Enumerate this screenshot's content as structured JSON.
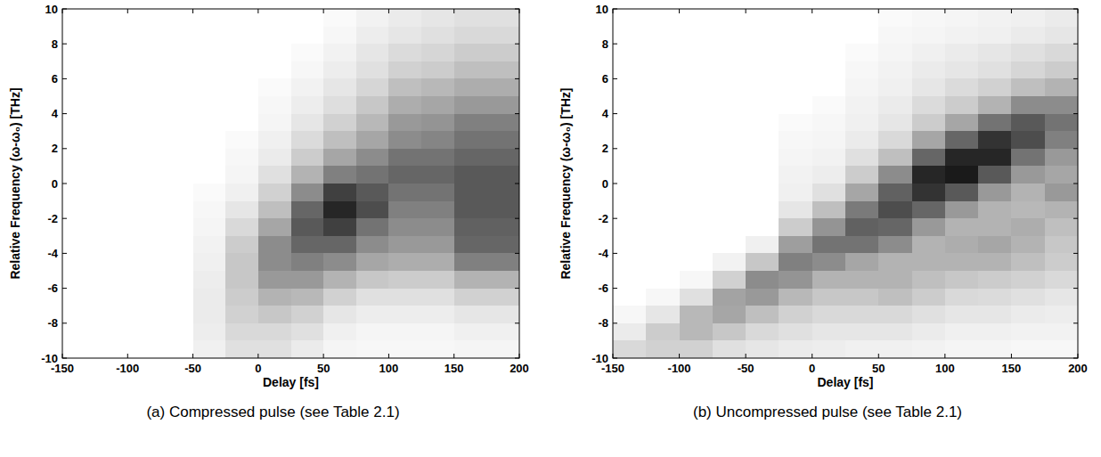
{
  "chart_data": [
    {
      "type": "heatmap",
      "title": "(a) Compressed pulse (see Table 2.1)",
      "x_label": "Delay [fs]",
      "y_label": "Relative Frequency (ω-ω₀) [THz]",
      "xlim": [
        -150,
        200
      ],
      "ylim": [
        -10,
        10
      ],
      "xticks": [
        -150,
        -100,
        -50,
        0,
        50,
        100,
        150,
        200
      ],
      "yticks": [
        -10,
        -8,
        -6,
        -4,
        -2,
        0,
        2,
        4,
        6,
        8,
        10
      ],
      "zlim": [
        0,
        1
      ],
      "color": "#000000",
      "x": [
        -137.5,
        -112.5,
        -87.5,
        -62.5,
        -37.5,
        -12.5,
        12.5,
        37.5,
        62.5,
        87.5,
        112.5,
        137.5,
        162.5,
        187.5
      ],
      "y": [
        9.5,
        8.5,
        7.5,
        6.5,
        5.5,
        4.5,
        3.5,
        2.5,
        1.5,
        0.5,
        -0.5,
        -1.5,
        -2.5,
        -3.5,
        -4.5,
        -5.5,
        -6.5,
        -7.5,
        -8.5,
        -9.5
      ],
      "cells": [
        [
          0,
          0,
          0,
          0,
          0,
          0,
          0,
          0,
          0.02,
          0.05,
          0.08,
          0.1,
          0.12,
          0.12
        ],
        [
          0,
          0,
          0,
          0,
          0,
          0,
          0,
          0,
          0.03,
          0.07,
          0.1,
          0.12,
          0.15,
          0.15
        ],
        [
          0,
          0,
          0,
          0,
          0,
          0,
          0,
          0.02,
          0.05,
          0.1,
          0.14,
          0.16,
          0.2,
          0.2
        ],
        [
          0,
          0,
          0,
          0,
          0,
          0,
          0,
          0.03,
          0.07,
          0.12,
          0.18,
          0.2,
          0.25,
          0.25
        ],
        [
          0,
          0,
          0,
          0,
          0,
          0,
          0.02,
          0.05,
          0.1,
          0.16,
          0.25,
          0.28,
          0.32,
          0.32
        ],
        [
          0,
          0,
          0,
          0,
          0,
          0,
          0.03,
          0.07,
          0.13,
          0.22,
          0.32,
          0.35,
          0.4,
          0.4
        ],
        [
          0,
          0,
          0,
          0,
          0,
          0,
          0.04,
          0.1,
          0.18,
          0.28,
          0.4,
          0.42,
          0.5,
          0.5
        ],
        [
          0,
          0,
          0,
          0,
          0,
          0.02,
          0.06,
          0.14,
          0.25,
          0.35,
          0.45,
          0.48,
          0.55,
          0.55
        ],
        [
          0,
          0,
          0,
          0,
          0,
          0.03,
          0.08,
          0.2,
          0.35,
          0.45,
          0.55,
          0.55,
          0.6,
          0.6
        ],
        [
          0,
          0,
          0,
          0,
          0,
          0.04,
          0.12,
          0.3,
          0.5,
          0.55,
          0.6,
          0.6,
          0.65,
          0.65
        ],
        [
          0,
          0,
          0,
          0,
          0.02,
          0.06,
          0.18,
          0.45,
          0.75,
          0.65,
          0.55,
          0.55,
          0.65,
          0.65
        ],
        [
          0,
          0,
          0,
          0,
          0.03,
          0.1,
          0.25,
          0.6,
          0.85,
          0.7,
          0.5,
          0.5,
          0.65,
          0.65
        ],
        [
          0,
          0,
          0,
          0,
          0.04,
          0.15,
          0.35,
          0.65,
          0.75,
          0.55,
          0.45,
          0.45,
          0.62,
          0.62
        ],
        [
          0,
          0,
          0,
          0,
          0.05,
          0.2,
          0.45,
          0.6,
          0.6,
          0.45,
          0.4,
          0.4,
          0.6,
          0.6
        ],
        [
          0,
          0,
          0,
          0,
          0.06,
          0.22,
          0.45,
          0.5,
          0.45,
          0.35,
          0.32,
          0.32,
          0.5,
          0.5
        ],
        [
          0,
          0,
          0,
          0,
          0.07,
          0.22,
          0.4,
          0.4,
          0.3,
          0.22,
          0.2,
          0.2,
          0.3,
          0.3
        ],
        [
          0,
          0,
          0,
          0,
          0.08,
          0.2,
          0.3,
          0.28,
          0.18,
          0.12,
          0.12,
          0.12,
          0.18,
          0.18
        ],
        [
          0,
          0,
          0,
          0,
          0.08,
          0.18,
          0.22,
          0.18,
          0.1,
          0.07,
          0.07,
          0.07,
          0.1,
          0.1
        ],
        [
          0,
          0,
          0,
          0,
          0.07,
          0.15,
          0.15,
          0.12,
          0.06,
          0.04,
          0.04,
          0.04,
          0.06,
          0.06
        ],
        [
          0,
          0,
          0,
          0,
          0.06,
          0.12,
          0.12,
          0.08,
          0.04,
          0.03,
          0.03,
          0.03,
          0.04,
          0.04
        ]
      ]
    },
    {
      "type": "heatmap",
      "title": "(b) Uncompressed pulse (see Table 2.1)",
      "x_label": "Delay [fs]",
      "y_label": "Relative Frequency (ω-ω₀) [THz]",
      "xlim": [
        -150,
        200
      ],
      "ylim": [
        -10,
        10
      ],
      "xticks": [
        -150,
        -100,
        -50,
        0,
        50,
        100,
        150,
        200
      ],
      "yticks": [
        -10,
        -8,
        -6,
        -4,
        -2,
        0,
        2,
        4,
        6,
        8,
        10
      ],
      "zlim": [
        0,
        1
      ],
      "color": "#000000",
      "x": [
        -137.5,
        -112.5,
        -87.5,
        -62.5,
        -37.5,
        -12.5,
        12.5,
        37.5,
        62.5,
        87.5,
        112.5,
        137.5,
        162.5,
        187.5
      ],
      "y": [
        9.5,
        8.5,
        7.5,
        6.5,
        5.5,
        4.5,
        3.5,
        2.5,
        1.5,
        0.5,
        -0.5,
        -1.5,
        -2.5,
        -3.5,
        -4.5,
        -5.5,
        -6.5,
        -7.5,
        -8.5,
        -9.5
      ],
      "cells": [
        [
          0,
          0,
          0,
          0,
          0,
          0,
          0,
          0,
          0.02,
          0.03,
          0.04,
          0.05,
          0.06,
          0.08
        ],
        [
          0,
          0,
          0,
          0,
          0,
          0,
          0,
          0,
          0.03,
          0.04,
          0.05,
          0.06,
          0.08,
          0.1
        ],
        [
          0,
          0,
          0,
          0,
          0,
          0,
          0,
          0.02,
          0.04,
          0.06,
          0.08,
          0.1,
          0.12,
          0.15
        ],
        [
          0,
          0,
          0,
          0,
          0,
          0,
          0,
          0.03,
          0.05,
          0.08,
          0.1,
          0.12,
          0.16,
          0.2
        ],
        [
          0,
          0,
          0,
          0,
          0,
          0,
          0,
          0.04,
          0.06,
          0.1,
          0.14,
          0.18,
          0.25,
          0.3
        ],
        [
          0,
          0,
          0,
          0,
          0,
          0,
          0.02,
          0.05,
          0.08,
          0.14,
          0.2,
          0.3,
          0.45,
          0.45
        ],
        [
          0,
          0,
          0,
          0,
          0,
          0.02,
          0.03,
          0.06,
          0.1,
          0.2,
          0.35,
          0.55,
          0.65,
          0.55
        ],
        [
          0,
          0,
          0,
          0,
          0,
          0.03,
          0.04,
          0.08,
          0.15,
          0.35,
          0.6,
          0.8,
          0.7,
          0.5
        ],
        [
          0,
          0,
          0,
          0,
          0,
          0.04,
          0.05,
          0.12,
          0.25,
          0.6,
          0.85,
          0.85,
          0.55,
          0.4
        ],
        [
          0,
          0,
          0,
          0,
          0,
          0.05,
          0.07,
          0.2,
          0.45,
          0.85,
          0.9,
          0.65,
          0.4,
          0.35
        ],
        [
          0,
          0,
          0,
          0,
          0,
          0.06,
          0.12,
          0.35,
          0.62,
          0.8,
          0.65,
          0.4,
          0.3,
          0.4
        ],
        [
          0,
          0,
          0,
          0,
          0,
          0.1,
          0.25,
          0.52,
          0.7,
          0.6,
          0.4,
          0.3,
          0.28,
          0.3
        ],
        [
          0,
          0,
          0,
          0,
          0,
          0.2,
          0.42,
          0.62,
          0.6,
          0.4,
          0.3,
          0.3,
          0.32,
          0.25
        ],
        [
          0,
          0,
          0,
          0,
          0.06,
          0.38,
          0.55,
          0.55,
          0.45,
          0.3,
          0.32,
          0.35,
          0.3,
          0.22
        ],
        [
          0,
          0,
          0,
          0.05,
          0.22,
          0.5,
          0.45,
          0.35,
          0.3,
          0.3,
          0.3,
          0.3,
          0.25,
          0.2
        ],
        [
          0,
          0,
          0.03,
          0.18,
          0.45,
          0.42,
          0.3,
          0.3,
          0.3,
          0.25,
          0.22,
          0.2,
          0.18,
          0.15
        ],
        [
          0,
          0.03,
          0.12,
          0.36,
          0.4,
          0.28,
          0.22,
          0.22,
          0.25,
          0.2,
          0.15,
          0.14,
          0.12,
          0.1
        ],
        [
          0.03,
          0.1,
          0.28,
          0.35,
          0.25,
          0.18,
          0.15,
          0.15,
          0.15,
          0.12,
          0.1,
          0.1,
          0.08,
          0.07
        ],
        [
          0.08,
          0.2,
          0.28,
          0.22,
          0.15,
          0.12,
          0.1,
          0.1,
          0.1,
          0.08,
          0.06,
          0.06,
          0.05,
          0.05
        ],
        [
          0.15,
          0.18,
          0.18,
          0.12,
          0.1,
          0.08,
          0.07,
          0.06,
          0.06,
          0.05,
          0.04,
          0.04,
          0.03,
          0.03
        ]
      ]
    }
  ]
}
